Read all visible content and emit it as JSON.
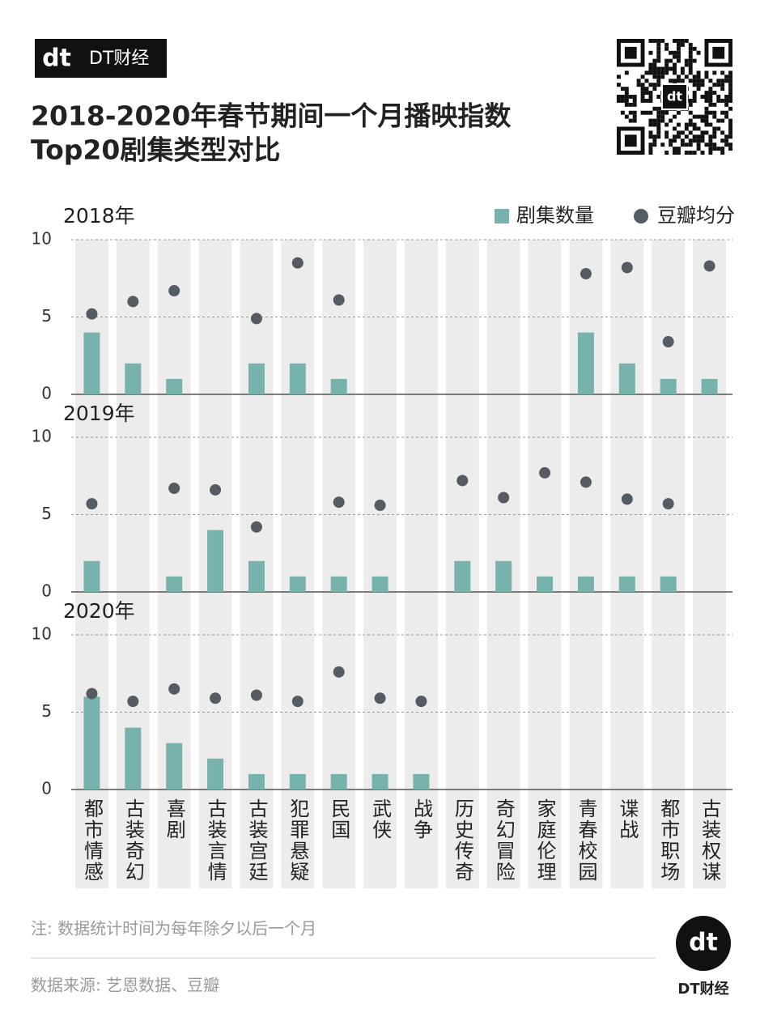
{
  "header": {
    "logo_mark": "dt",
    "logo_text": "DT财经",
    "title_lines": [
      "2018-2020年春节期间一个月播映指数",
      "Top20剧集类型对比"
    ]
  },
  "chart_data": {
    "type": "bar",
    "categories": [
      "都市情感",
      "古装奇幻",
      "喜剧",
      "古装言情",
      "古装宫廷",
      "犯罪悬疑",
      "民国",
      "武侠",
      "战争",
      "历史传奇",
      "奇幻冒险",
      "家庭伦理",
      "青春校园",
      "谍战",
      "都市职场",
      "古装权谋"
    ],
    "ylim": [
      0,
      10
    ],
    "yticks": [
      0,
      5,
      10
    ],
    "grid": true,
    "legend": "top-right",
    "series": [
      {
        "name": "剧集数量",
        "color": "#78b2ad",
        "type": "bar"
      },
      {
        "name": "豆瓣均分",
        "color": "#545b62",
        "type": "scatter"
      }
    ],
    "panels": [
      {
        "title": "2018年",
        "series": [
          {
            "values": [
              4,
              2,
              1,
              null,
              2,
              2,
              1,
              null,
              null,
              null,
              null,
              null,
              4,
              2,
              1,
              1
            ]
          },
          {
            "values": [
              5.2,
              6.0,
              6.7,
              null,
              4.9,
              8.5,
              6.1,
              null,
              null,
              null,
              null,
              null,
              7.8,
              8.2,
              3.4,
              8.3
            ]
          }
        ]
      },
      {
        "title": "2019年",
        "series": [
          {
            "values": [
              2,
              null,
              1,
              4,
              2,
              1,
              1,
              1,
              null,
              2,
              2,
              1,
              1,
              1,
              1,
              null
            ]
          },
          {
            "values": [
              5.7,
              null,
              6.7,
              6.6,
              4.2,
              null,
              5.8,
              5.6,
              null,
              7.2,
              6.1,
              7.7,
              7.1,
              6.0,
              5.7,
              null
            ]
          }
        ]
      },
      {
        "title": "2020年",
        "series": [
          {
            "values": [
              6,
              4,
              3,
              2,
              1,
              1,
              1,
              1,
              1,
              null,
              null,
              null,
              null,
              null,
              null,
              null
            ]
          },
          {
            "values": [
              6.2,
              5.7,
              6.5,
              5.9,
              6.1,
              5.7,
              7.6,
              5.9,
              5.7,
              null,
              null,
              null,
              null,
              null,
              null,
              null
            ]
          }
        ]
      }
    ]
  },
  "footer": {
    "note": "注: 数据统计时间为每年除夕以后一个月",
    "source": "数据来源: 艺恩数据、豆瓣",
    "logo_text": "DT财经"
  }
}
